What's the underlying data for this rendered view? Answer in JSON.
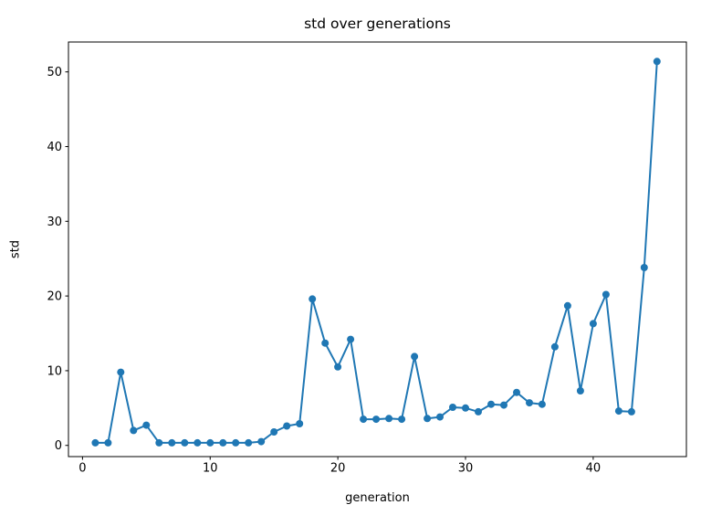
{
  "chart_data": {
    "type": "line",
    "title": "std over generations",
    "xlabel": "generation",
    "ylabel": "std",
    "grid": false,
    "legend": "none",
    "background_color": "#ffffff",
    "axis_color": "#000000",
    "xlim": [
      -1.1,
      47.3
    ],
    "ylim": [
      -1.5,
      54.0
    ],
    "xticks": [
      0,
      10,
      20,
      30,
      40
    ],
    "yticks": [
      0,
      10,
      20,
      30,
      40,
      50
    ],
    "series": [
      {
        "name": "std",
        "color": "#1f77b4",
        "marker": "circle",
        "x": [
          1,
          2,
          3,
          4,
          5,
          6,
          7,
          8,
          9,
          10,
          11,
          12,
          13,
          14,
          15,
          16,
          17,
          18,
          19,
          20,
          21,
          22,
          23,
          24,
          25,
          26,
          27,
          28,
          29,
          30,
          31,
          32,
          33,
          34,
          35,
          36,
          37,
          38,
          39,
          40,
          41,
          42,
          43,
          44,
          45
        ],
        "y": [
          0.35,
          0.35,
          9.8,
          2.0,
          2.7,
          0.35,
          0.35,
          0.35,
          0.35,
          0.35,
          0.35,
          0.35,
          0.35,
          0.5,
          1.8,
          2.6,
          2.9,
          19.6,
          13.7,
          10.5,
          14.2,
          3.5,
          3.5,
          3.6,
          3.5,
          11.9,
          3.6,
          3.8,
          5.1,
          5.0,
          4.5,
          5.5,
          5.4,
          7.1,
          5.7,
          5.5,
          13.2,
          18.7,
          7.3,
          16.3,
          20.2,
          4.6,
          4.5,
          23.8,
          51.4
        ]
      }
    ]
  }
}
